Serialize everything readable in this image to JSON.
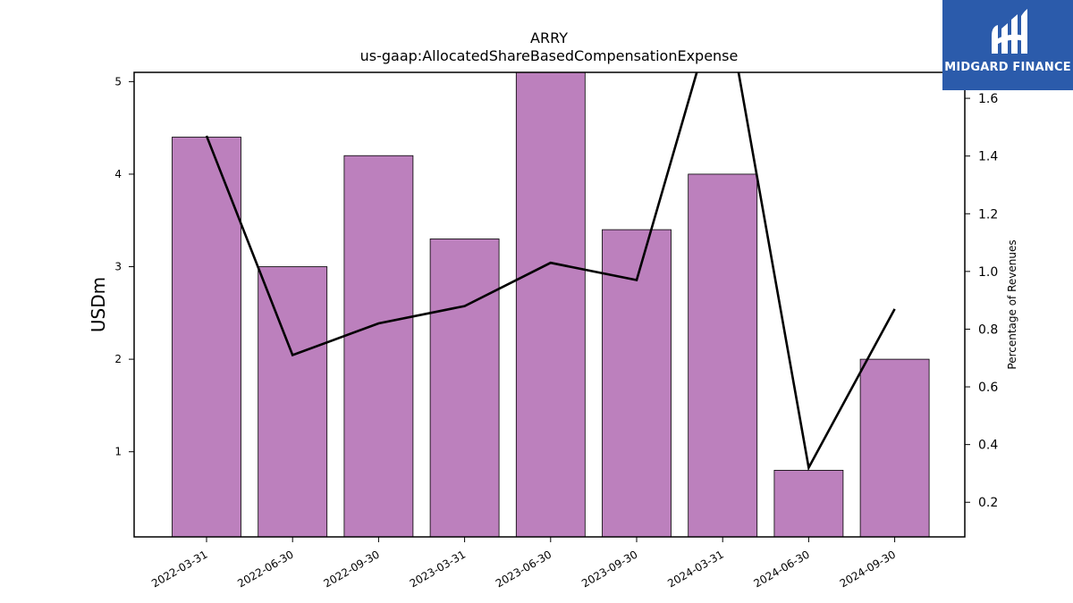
{
  "chart_data": {
    "type": "bar",
    "title": "ARRY",
    "subtitle": "us-gaap:AllocatedShareBasedCompensationExpense",
    "ylabel": "USDm",
    "y2label": "Percentage of Revenues",
    "categories": [
      "2022-03-31",
      "2022-06-30",
      "2022-09-30",
      "2023-03-31",
      "2023-06-30",
      "2023-09-30",
      "2024-03-31",
      "2024-06-30",
      "2024-09-30"
    ],
    "series": [
      {
        "values": [
          4.4,
          3.0,
          4.2,
          3.3,
          5.2,
          3.4,
          4.0,
          0.8,
          2.0
        ],
        "axis": "left",
        "kind": "bar",
        "color": "#bc80bd"
      },
      {
        "values": [
          1.47,
          0.71,
          0.82,
          0.88,
          1.03,
          0.97,
          2.0,
          0.32,
          0.87
        ],
        "axis": "right",
        "kind": "line",
        "color": "#000000"
      }
    ],
    "ylim": [
      0.08,
      5.1
    ],
    "y2lim": [
      0.08,
      1.69
    ],
    "yticks": [
      1,
      2,
      3,
      4,
      5
    ],
    "y2ticks": [
      0.2,
      0.4,
      0.6,
      0.8,
      1.0,
      1.2,
      1.4,
      1.6
    ],
    "grid": false,
    "legend": "none"
  },
  "logo": {
    "text": "MIDGARD FINANCE",
    "background": "#2b5bab"
  }
}
